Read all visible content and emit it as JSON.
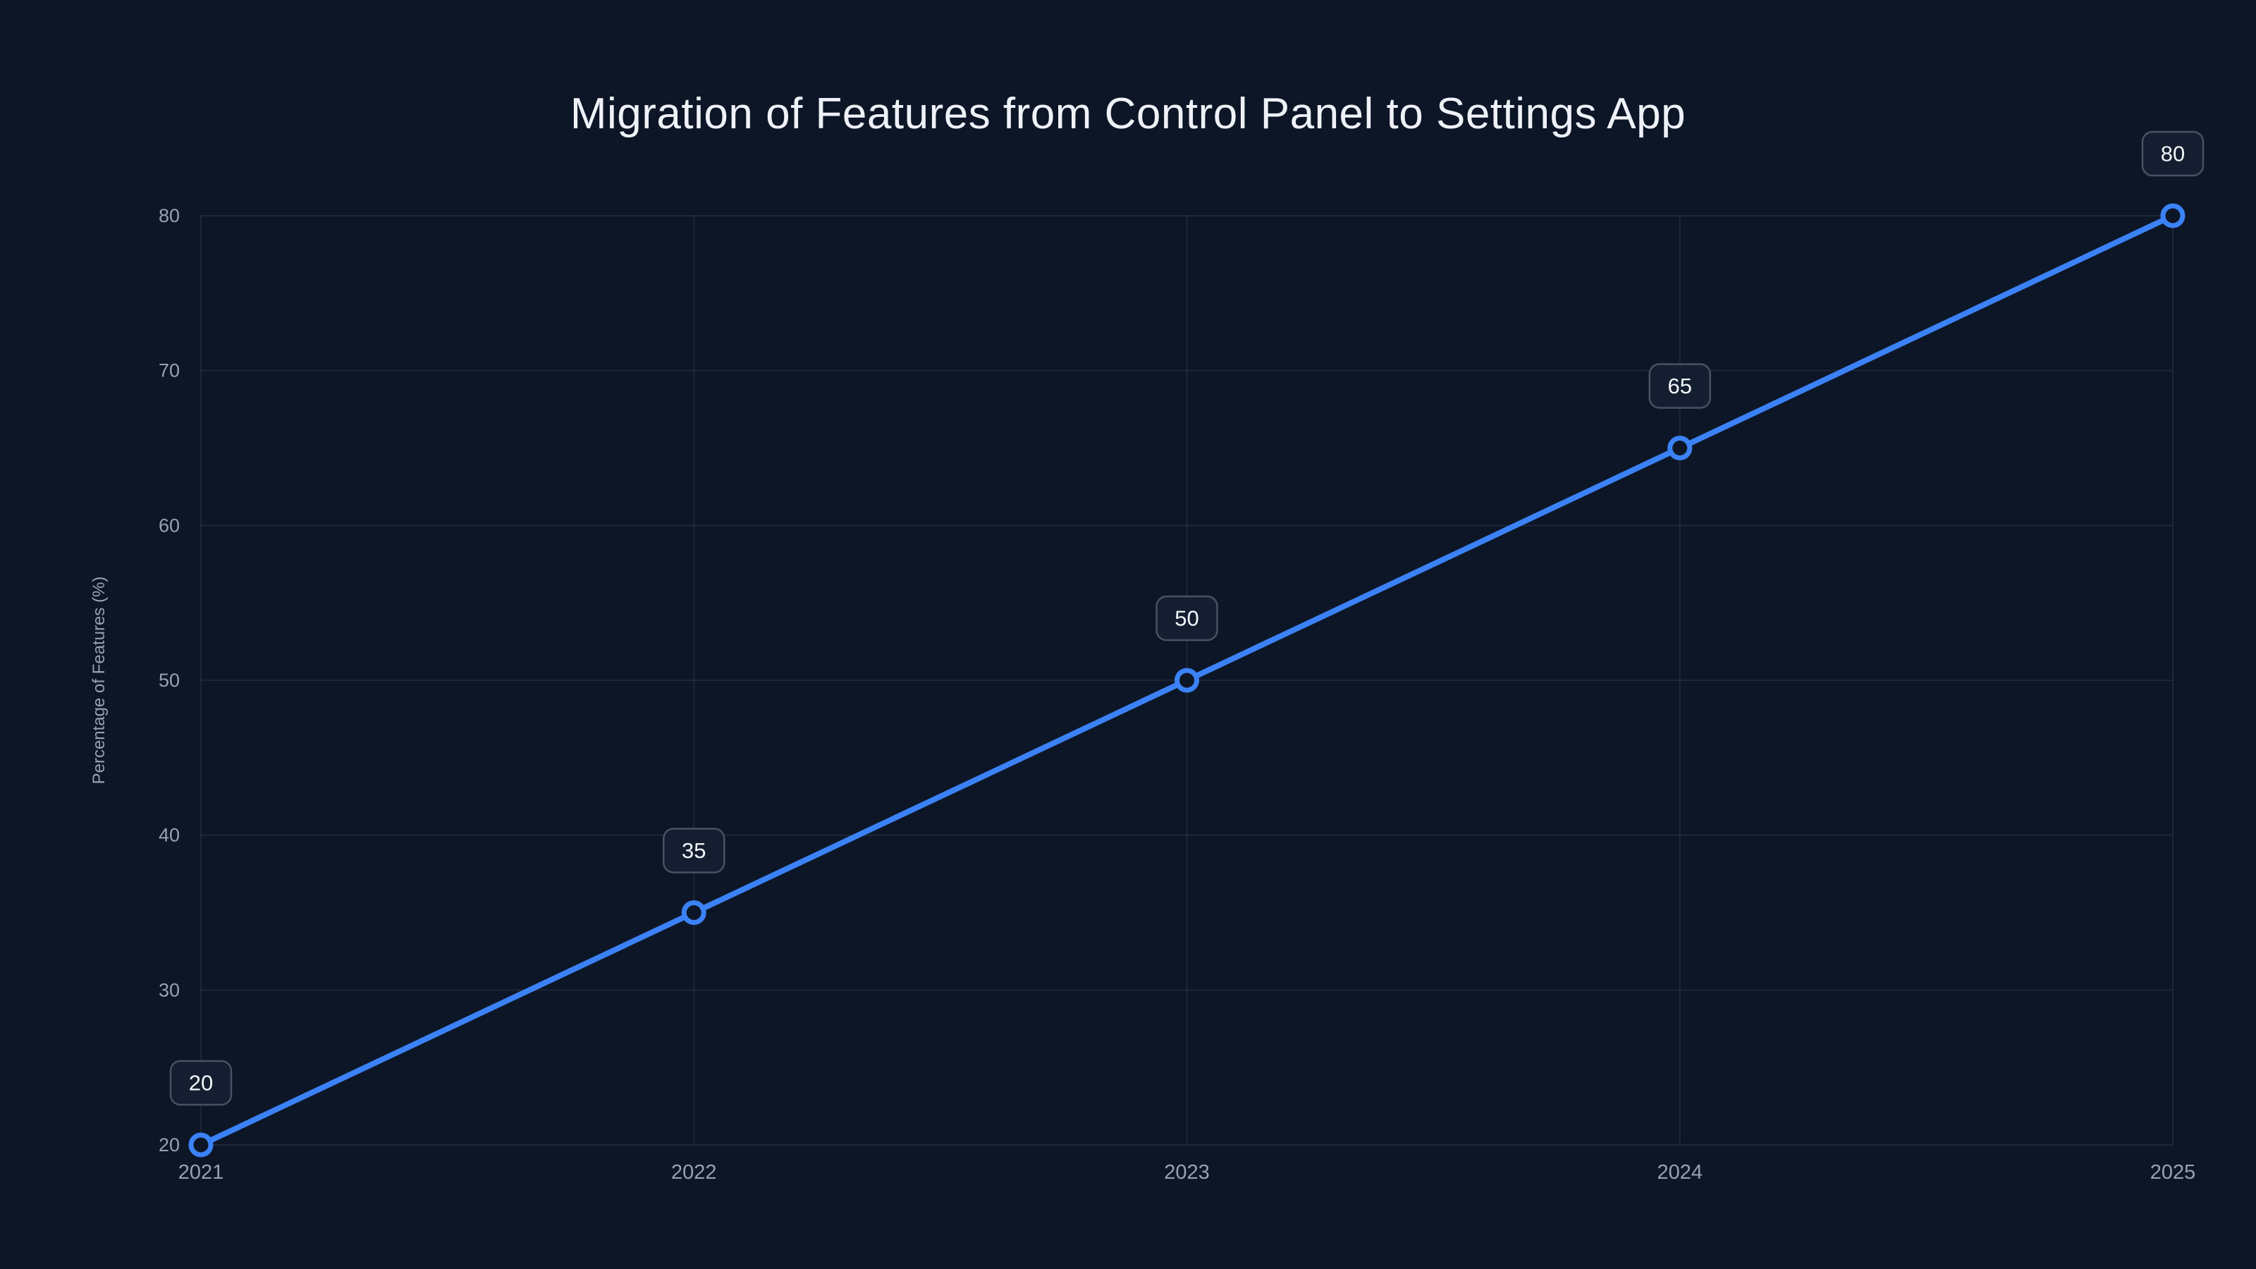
{
  "page": {
    "background": "#0d1627"
  },
  "chart_data": {
    "type": "line",
    "title": "Migration of Features from Control Panel to Settings App",
    "xlabel": "",
    "ylabel": "Percentage of Features (%)",
    "categories": [
      "2021",
      "2022",
      "2023",
      "2024",
      "2025"
    ],
    "x": [
      2021,
      2022,
      2023,
      2024,
      2025
    ],
    "series": [
      {
        "name": "Percentage of Features (%)",
        "values": [
          20,
          35,
          50,
          65,
          80
        ]
      }
    ],
    "values": [
      20,
      35,
      50,
      65,
      80
    ],
    "data_labels": [
      "20",
      "35",
      "50",
      "65",
      "80"
    ],
    "xlim": [
      2021,
      2025
    ],
    "ylim": [
      20,
      80
    ],
    "yticks": [
      20,
      30,
      40,
      50,
      60,
      70,
      80
    ],
    "grid": true,
    "legend": "none",
    "colors": {
      "background": "#0d1627",
      "line": "#3b82f6",
      "point_fill": "#0d1627",
      "grid": "rgba(255,255,255,0.07)",
      "tick_text": "#97a1b3",
      "title_text": "#eef2f7",
      "badge_fill": "#141e30",
      "badge_border": "#465264",
      "badge_text": "#f3f6fa"
    }
  }
}
